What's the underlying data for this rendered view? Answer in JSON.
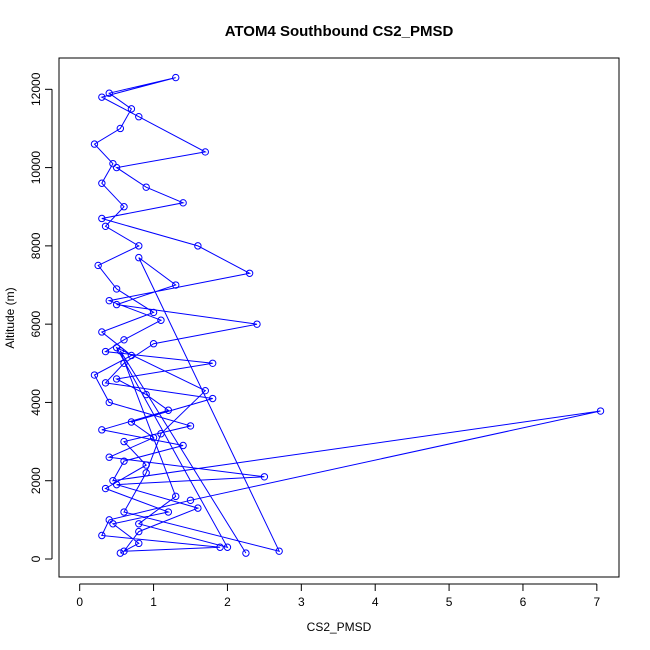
{
  "chart_data": {
    "type": "line",
    "title": "ATOM4 Southbound CS2_PMSD",
    "xlabel": "CS2_PMSD",
    "ylabel": "Altitude (m)",
    "xlim": [
      -0.28,
      7.3
    ],
    "ylim": [
      -460,
      12800
    ],
    "xticks": [
      0,
      1,
      2,
      3,
      4,
      5,
      6,
      7
    ],
    "xtick_labels": [
      "0",
      "1",
      "2",
      "3",
      "4",
      "5",
      "6",
      "7"
    ],
    "yticks": [
      0,
      2000,
      4000,
      6000,
      8000,
      10000,
      12000
    ],
    "ytick_labels": [
      "0",
      "2000",
      "4000",
      "6000",
      "8000",
      "10000",
      "12000"
    ],
    "grid": false,
    "markers": "open-circle",
    "line_color": "#0000ff",
    "series": [
      {
        "name": "",
        "color": "#0000ff",
        "x": [
          0.55,
          0.8,
          0.45,
          1.2,
          0.35,
          0.9,
          0.6,
          1.5,
          0.4,
          0.2,
          0.7,
          0.3,
          1.0,
          0.5,
          0.25,
          0.8,
          0.35,
          0.6,
          0.3,
          0.45,
          0.2,
          0.55,
          0.7,
          0.4,
          1.3,
          0.3,
          0.8,
          1.7,
          0.5,
          0.9,
          1.4,
          0.3,
          1.6,
          2.3,
          0.4,
          1.1,
          0.6,
          0.35,
          1.8,
          0.5,
          0.9,
          1.2,
          0.3,
          1.4,
          0.6,
          0.45,
          7.05,
          1.5,
          0.4,
          0.3,
          1.9,
          0.6,
          0.8,
          1.6,
          0.5,
          2.5,
          0.4,
          1.0,
          0.7,
          1.8,
          0.35,
          0.6,
          1.0,
          2.4,
          0.5,
          1.3,
          0.8,
          2.7,
          0.6,
          0.9,
          1.1,
          1.7,
          0.5,
          2.0,
          0.8,
          1.3,
          0.55,
          2.25
        ],
        "y": [
          150,
          400,
          900,
          1200,
          1800,
          2400,
          3000,
          3400,
          4000,
          4700,
          5200,
          5800,
          6300,
          6900,
          7500,
          8000,
          8500,
          9000,
          9600,
          10100,
          10600,
          11000,
          11500,
          11900,
          12300,
          11800,
          11300,
          10400,
          10000,
          9500,
          9100,
          8700,
          8000,
          7300,
          6600,
          6100,
          5600,
          5300,
          5000,
          4600,
          4200,
          3800,
          3300,
          2900,
          2500,
          2000,
          3780,
          1500,
          1000,
          600,
          300,
          200,
          700,
          1300,
          1900,
          2100,
          2600,
          3100,
          3500,
          4100,
          4500,
          5000,
          5500,
          6000,
          6500,
          7000,
          7700,
          200,
          1200,
          2200,
          3200,
          4300,
          5400,
          300,
          900,
          1600,
          5320,
          150
        ]
      }
    ]
  }
}
